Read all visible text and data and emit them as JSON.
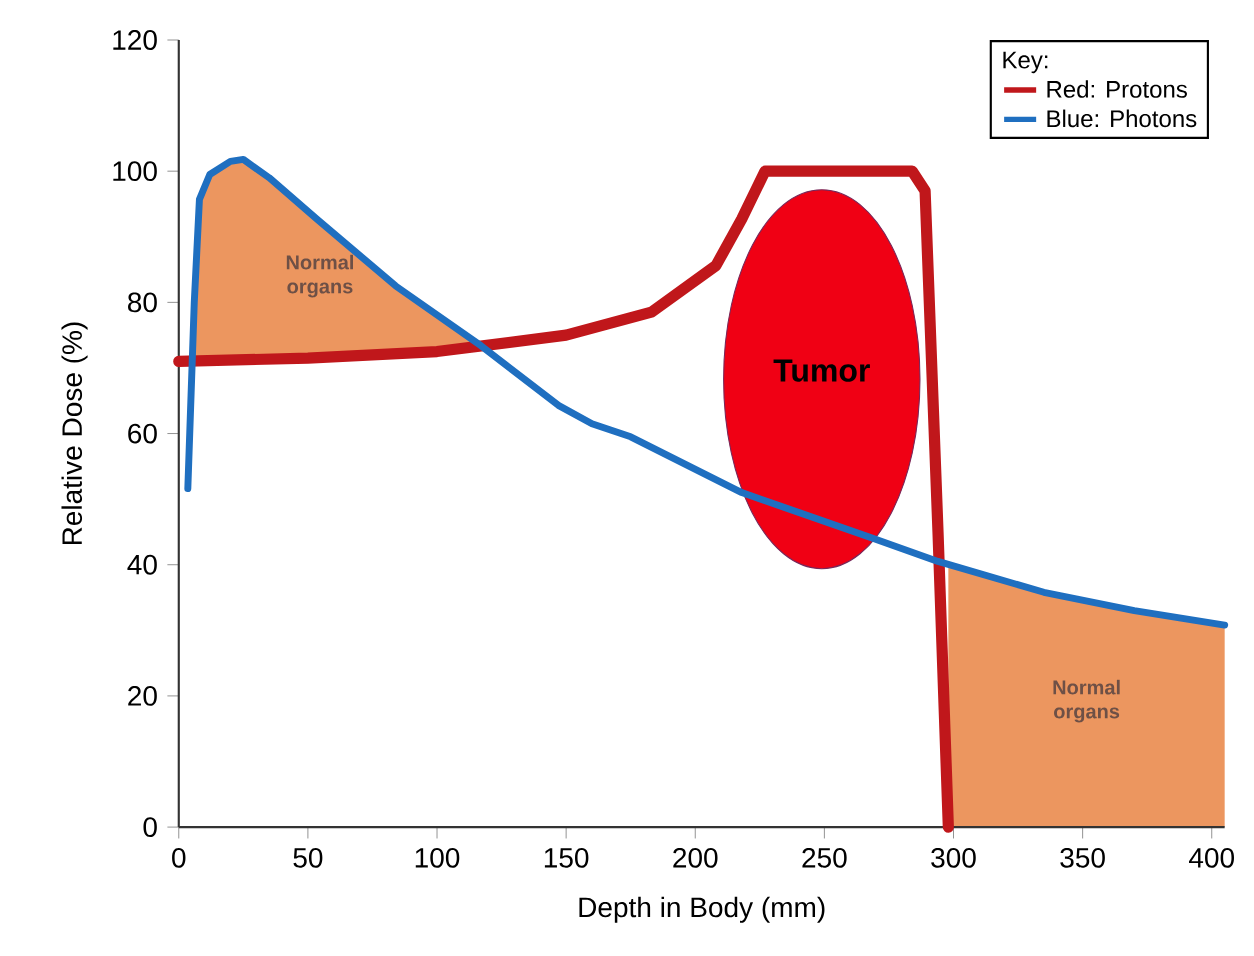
{
  "chart_data": {
    "type": "line",
    "xlabel": "Depth in Body (mm)",
    "ylabel": "Relative Dose (%)",
    "legend_title": "Key:",
    "legend": "top right",
    "xlim": [
      0,
      405
    ],
    "ylim": [
      0,
      120
    ],
    "xticks": [
      0,
      50,
      100,
      150,
      200,
      250,
      300,
      350,
      400
    ],
    "yticks": [
      0,
      20,
      40,
      60,
      80,
      100,
      120
    ],
    "series": [
      {
        "name": "Red: Protons",
        "color": "#c0171b",
        "x": [
          0,
          50,
          100,
          150,
          183,
          208,
          218,
          227,
          284,
          289,
          294,
          298
        ],
        "values": [
          71,
          71.5,
          72.5,
          75,
          78.5,
          85.6,
          92.7,
          100,
          100,
          97,
          45,
          0
        ]
      },
      {
        "name": "Blue: Photons",
        "color": "#1f6fc0",
        "x": [
          3.5,
          6,
          8,
          12,
          20,
          25,
          35,
          53.5,
          84,
          117,
          147,
          160,
          175,
          218,
          269,
          294,
          335,
          370,
          405
        ],
        "values": [
          51.6,
          80,
          95.7,
          99.5,
          101.5,
          101.8,
          99,
          92.7,
          82.5,
          73.4,
          64.3,
          61.5,
          59.5,
          51,
          44,
          40.5,
          35.8,
          33,
          30.8
        ]
      }
    ],
    "annotations": [
      "Normal organs",
      "Tumor",
      "Normal organs"
    ]
  }
}
